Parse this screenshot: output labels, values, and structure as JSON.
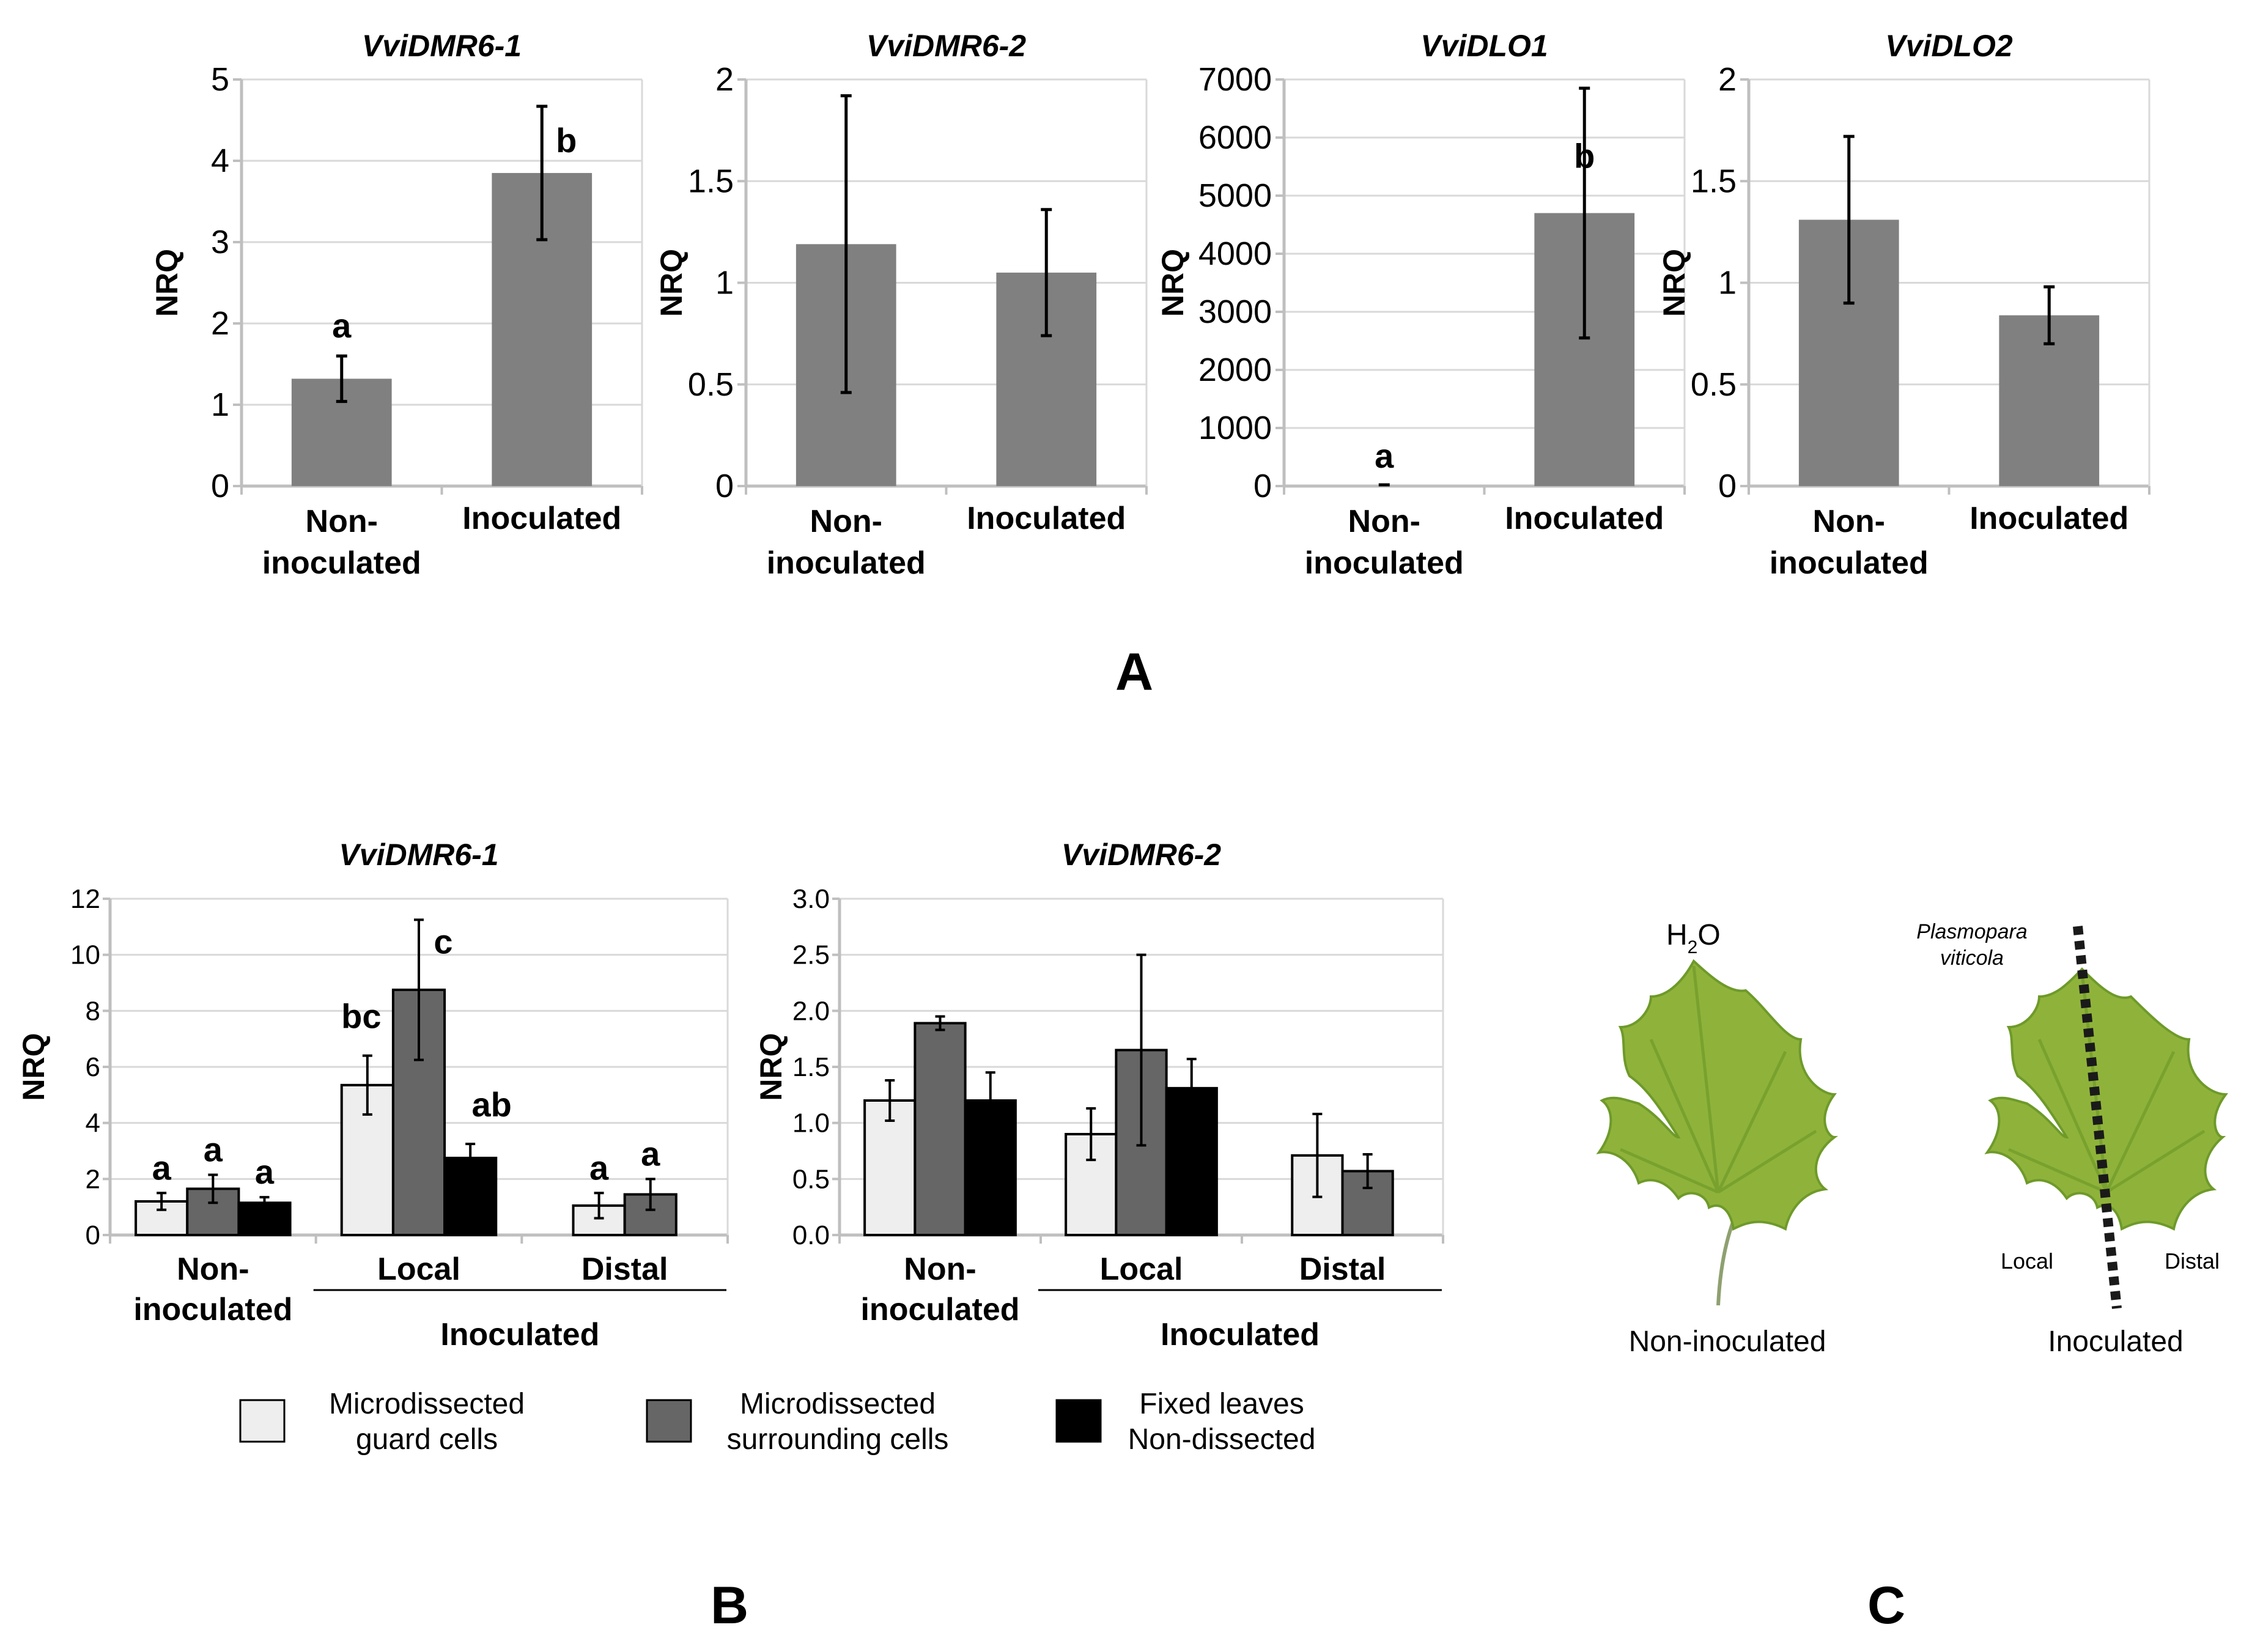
{
  "panel_labels": {
    "a": "A",
    "b": "B",
    "c": "C"
  },
  "y_axis_label": "NRQ",
  "colors": {
    "bar_a": "#808080",
    "guard": "#eeeeee",
    "surrounding": "#666666",
    "fixed": "#000000",
    "grid": "#d9d9d9",
    "axis": "#bfbfbf",
    "leaf": "#8fb33a",
    "leaf_dark": "#6e9a2a"
  },
  "chart_data": [
    {
      "type": "bar",
      "panel": "A",
      "title": "VviDMR6-1",
      "categories": [
        "Non-\ninoculated",
        "Inoculated"
      ],
      "values": [
        1.32,
        3.85
      ],
      "errors": [
        0.28,
        0.82
      ],
      "letters": [
        "a",
        "b"
      ],
      "ylabel": "NRQ",
      "ylim": [
        0,
        5
      ],
      "yticks": [
        "0",
        "1",
        "2",
        "3",
        "4",
        "5"
      ]
    },
    {
      "type": "bar",
      "panel": "A",
      "title": "VviDMR6-2",
      "categories": [
        "Non-\ninoculated",
        "Inoculated"
      ],
      "values": [
        1.19,
        1.05
      ],
      "errors": [
        0.73,
        0.31
      ],
      "letters": [
        "",
        ""
      ],
      "ylabel": "NRQ",
      "ylim": [
        0,
        2
      ],
      "yticks": [
        "0",
        "0.5",
        "1",
        "1.5",
        "2"
      ]
    },
    {
      "type": "bar",
      "panel": "A",
      "title": "VviDLO1",
      "categories": [
        "Non-\ninoculated",
        "Inoculated"
      ],
      "values": [
        0,
        4700
      ],
      "errors": [
        0,
        2150
      ],
      "letters": [
        "a",
        "b"
      ],
      "ylabel": "NRQ",
      "ylim": [
        0,
        7000
      ],
      "yticks": [
        "0",
        "1000",
        "2000",
        "3000",
        "4000",
        "5000",
        "6000",
        "7000"
      ]
    },
    {
      "type": "bar",
      "panel": "A",
      "title": "VviDLO2",
      "categories": [
        "Non-\ninoculated",
        "Inoculated"
      ],
      "values": [
        1.31,
        0.84
      ],
      "errors": [
        0.41,
        0.14
      ],
      "letters": [
        "",
        ""
      ],
      "ylabel": "NRQ",
      "ylim": [
        0,
        2
      ],
      "yticks": [
        "0",
        "0.5",
        "1",
        "1.5",
        "2"
      ]
    },
    {
      "type": "bar",
      "panel": "B",
      "title": "VviDMR6-1",
      "groups": [
        "Non-\ninoculated",
        "Local",
        "Distal"
      ],
      "supergroup": "Inoculated",
      "series": [
        {
          "name": "Microdissected guard cells",
          "values": [
            1.2,
            5.35,
            1.05
          ],
          "errors": [
            0.3,
            1.05,
            0.45
          ],
          "letters": [
            "a",
            "bc",
            "a"
          ]
        },
        {
          "name": "Microdissected surrounding cells",
          "values": [
            1.65,
            8.75,
            1.45
          ],
          "errors": [
            0.5,
            2.5,
            0.55
          ],
          "letters": [
            "a",
            "c",
            "a"
          ]
        },
        {
          "name": "Fixed leaves Non-dissected",
          "values": [
            1.15,
            2.75,
            null
          ],
          "errors": [
            0.2,
            0.5,
            null
          ],
          "letters": [
            "a",
            "ab",
            ""
          ]
        }
      ],
      "ylabel": "NRQ",
      "ylim": [
        0,
        12
      ],
      "yticks": [
        "0",
        "2",
        "4",
        "6",
        "8",
        "10",
        "12"
      ]
    },
    {
      "type": "bar",
      "panel": "B",
      "title": "VviDMR6-2",
      "groups": [
        "Non-\ninoculated",
        "Local",
        "Distal"
      ],
      "supergroup": "Inoculated",
      "series": [
        {
          "name": "Microdissected guard cells",
          "values": [
            1.2,
            0.9,
            0.71
          ],
          "errors": [
            0.18,
            0.23,
            0.37
          ],
          "letters": [
            "",
            "",
            ""
          ]
        },
        {
          "name": "Microdissected surrounding cells",
          "values": [
            1.89,
            1.65,
            0.57
          ],
          "errors": [
            0.06,
            0.85,
            0.15
          ],
          "letters": [
            "",
            "",
            ""
          ]
        },
        {
          "name": "Fixed leaves Non-dissected",
          "values": [
            1.2,
            1.31,
            null
          ],
          "errors": [
            0.25,
            0.26,
            null
          ],
          "letters": [
            "",
            "",
            ""
          ]
        }
      ],
      "ylabel": "NRQ",
      "ylim": [
        0,
        3
      ],
      "yticks": [
        "0.0",
        "0.5",
        "1.0",
        "1.5",
        "2.0",
        "2.5",
        "3.0"
      ]
    }
  ],
  "legend": [
    {
      "line1": "Microdissected",
      "line2": "guard cells"
    },
    {
      "line1": "Microdissected",
      "line2": "surrounding cells"
    },
    {
      "line1": "Fixed leaves",
      "line2": "Non-dissected"
    }
  ],
  "panel_c": {
    "h2o_main": "H",
    "h2o_sub": "2",
    "h2o_end": "O",
    "pathogen_line1": "Plasmopara",
    "pathogen_line2": "viticola",
    "local": "Local",
    "distal": "Distal",
    "leaf1_caption": "Non-inoculated",
    "leaf2_caption": "Inoculated"
  }
}
